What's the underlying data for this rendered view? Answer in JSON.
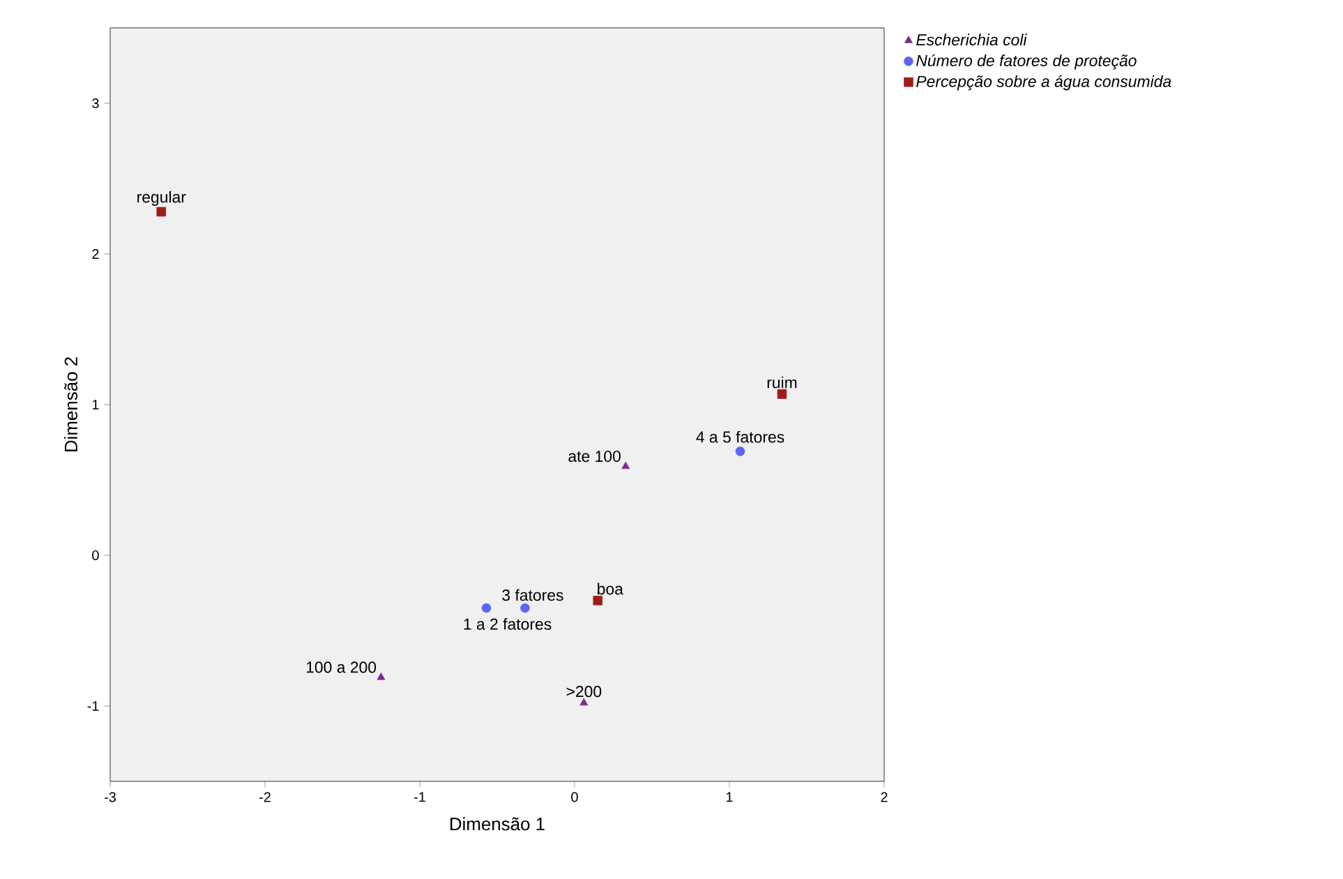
{
  "chart_data": {
    "type": "scatter",
    "xlabel": "Dimensão 1",
    "ylabel": "Dimensão 2",
    "xlim": [
      -3,
      2
    ],
    "ylim": [
      -1.5,
      3.5
    ],
    "xticks": [
      -3,
      -2,
      -1,
      0,
      1,
      2
    ],
    "yticks": [
      -1,
      0,
      1,
      2,
      3
    ],
    "grid": false,
    "legend": "top right",
    "series": [
      {
        "name": "Escherichia coli",
        "color": "#7b2d8e",
        "marker": "triangle",
        "x": [
          0.33,
          -1.25,
          0.06
        ],
        "values": [
          0.59,
          -0.81,
          -0.98
        ]
      },
      {
        "name": "Número de fatores de proteção",
        "color": "#5a64f5",
        "marker": "circle",
        "x": [
          1.07,
          -0.32,
          -0.57
        ],
        "values": [
          0.69,
          -0.35,
          -0.35
        ]
      },
      {
        "name": "Percepção sobre a água consumida",
        "color": "#a01c1c",
        "marker": "square",
        "x": [
          -2.67,
          1.34,
          0.15
        ],
        "values": [
          2.28,
          1.07,
          -0.3
        ]
      }
    ],
    "annotations": [
      {
        "text": "ate 100",
        "x": 0.33,
        "y": 0.59
      },
      {
        "text": "100 a 200",
        "x": -1.25,
        "y": -0.81
      },
      {
        "text": ">200",
        "x": 0.06,
        "y": -0.98
      },
      {
        "text": "4 a 5 fatores",
        "x": 1.07,
        "y": 0.69
      },
      {
        "text": "3 fatores",
        "x": -0.32,
        "y": -0.35
      },
      {
        "text": "1 a 2 fatores",
        "x": -0.57,
        "y": -0.35
      },
      {
        "text": "regular",
        "x": -2.67,
        "y": 2.28
      },
      {
        "text": "ruim",
        "x": 1.34,
        "y": 1.07
      },
      {
        "text": "boa",
        "x": 0.15,
        "y": -0.3
      }
    ]
  }
}
